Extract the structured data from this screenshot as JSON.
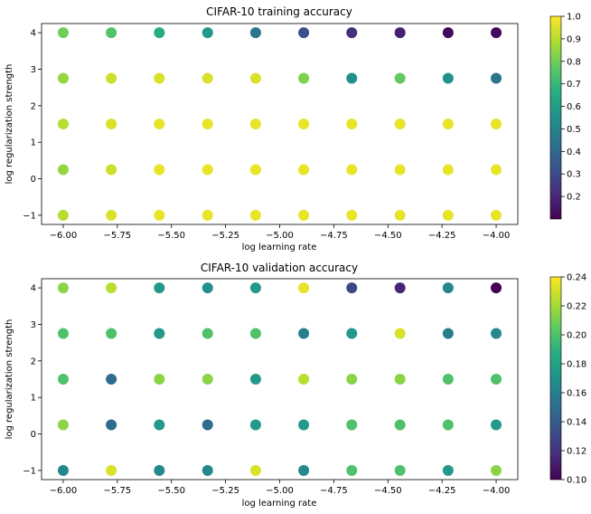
{
  "chart_data": [
    {
      "type": "scatter",
      "title": "CIFAR-10 training accuracy",
      "xlabel": "log learning rate",
      "ylabel": "log regularization strength",
      "xlim": [
        -6.1,
        -3.9
      ],
      "ylim": [
        -1.25,
        4.25
      ],
      "xticks": [
        -6.0,
        -5.75,
        -5.5,
        -5.25,
        -5.0,
        -4.75,
        -4.5,
        -4.25,
        -4.0
      ],
      "xtick_labels": [
        "−6.00",
        "−5.75",
        "−5.50",
        "−5.25",
        "−5.00",
        "−4.75",
        "−4.50",
        "−4.25",
        "−4.00"
      ],
      "yticks": [
        -1,
        0,
        1,
        2,
        3,
        4
      ],
      "ytick_labels": [
        "−1",
        "0",
        "1",
        "2",
        "3",
        "4"
      ],
      "x": [
        -6.0,
        -5.778,
        -5.556,
        -5.333,
        -5.111,
        -4.889,
        -4.667,
        -4.444,
        -4.222,
        -4.0
      ],
      "y": [
        -1.0,
        0.25,
        1.5,
        2.75,
        4.0
      ],
      "values": [
        [
          0.9,
          0.95,
          0.97,
          0.97,
          0.97,
          0.97,
          0.97,
          0.97,
          0.97,
          0.97
        ],
        [
          0.85,
          0.93,
          0.97,
          0.97,
          0.97,
          0.97,
          0.97,
          0.97,
          0.97,
          0.97
        ],
        [
          0.9,
          0.95,
          0.97,
          0.97,
          0.97,
          0.97,
          0.97,
          0.97,
          0.97,
          0.97
        ],
        [
          0.85,
          0.93,
          0.95,
          0.95,
          0.95,
          0.82,
          0.55,
          0.78,
          0.55,
          0.45
        ],
        [
          0.8,
          0.75,
          0.65,
          0.58,
          0.45,
          0.32,
          0.22,
          0.18,
          0.12,
          0.12
        ]
      ],
      "colorbar": {
        "min": 0.1,
        "max": 1.0,
        "ticks": [
          0.2,
          0.3,
          0.4,
          0.5,
          0.6,
          0.7,
          0.8,
          0.9,
          1.0
        ],
        "tick_labels": [
          "0.2",
          "0.3",
          "0.4",
          "0.5",
          "0.6",
          "0.7",
          "0.8",
          "0.9",
          "1.0"
        ],
        "colormap": "viridis"
      }
    },
    {
      "type": "scatter",
      "title": "CIFAR-10 validation accuracy",
      "xlabel": "log learning rate",
      "ylabel": "log regularization strength",
      "xlim": [
        -6.1,
        -3.9
      ],
      "ylim": [
        -1.25,
        4.25
      ],
      "xticks": [
        -6.0,
        -5.75,
        -5.5,
        -5.25,
        -5.0,
        -4.75,
        -4.5,
        -4.25,
        -4.0
      ],
      "xtick_labels": [
        "−6.00",
        "−5.75",
        "−5.50",
        "−5.25",
        "−5.00",
        "−4.75",
        "−4.50",
        "−4.25",
        "−4.00"
      ],
      "yticks": [
        -1,
        0,
        1,
        2,
        3,
        4
      ],
      "ytick_labels": [
        "−1",
        "0",
        "1",
        "2",
        "3",
        "4"
      ],
      "x": [
        -6.0,
        -5.778,
        -5.556,
        -5.333,
        -5.111,
        -4.889,
        -4.667,
        -4.444,
        -4.222,
        -4.0
      ],
      "y": [
        -1.0,
        0.25,
        1.5,
        2.75,
        4.0
      ],
      "values": [
        [
          0.165,
          0.232,
          0.165,
          0.165,
          0.232,
          0.165,
          0.2,
          0.2,
          0.175,
          0.215
        ],
        [
          0.215,
          0.15,
          0.175,
          0.15,
          0.175,
          0.175,
          0.2,
          0.2,
          0.2,
          0.175
        ],
        [
          0.2,
          0.15,
          0.215,
          0.215,
          0.175,
          0.225,
          0.215,
          0.215,
          0.2,
          0.2
        ],
        [
          0.2,
          0.2,
          0.175,
          0.2,
          0.2,
          0.16,
          0.175,
          0.232,
          0.16,
          0.165
        ],
        [
          0.215,
          0.225,
          0.175,
          0.17,
          0.175,
          0.235,
          0.13,
          0.115,
          0.165,
          0.1
        ]
      ],
      "colorbar": {
        "min": 0.1,
        "max": 0.24,
        "ticks": [
          0.1,
          0.12,
          0.14,
          0.16,
          0.18,
          0.2,
          0.22,
          0.24
        ],
        "tick_labels": [
          "0.10",
          "0.12",
          "0.14",
          "0.16",
          "0.18",
          "0.20",
          "0.22",
          "0.24"
        ],
        "colormap": "viridis"
      }
    }
  ]
}
